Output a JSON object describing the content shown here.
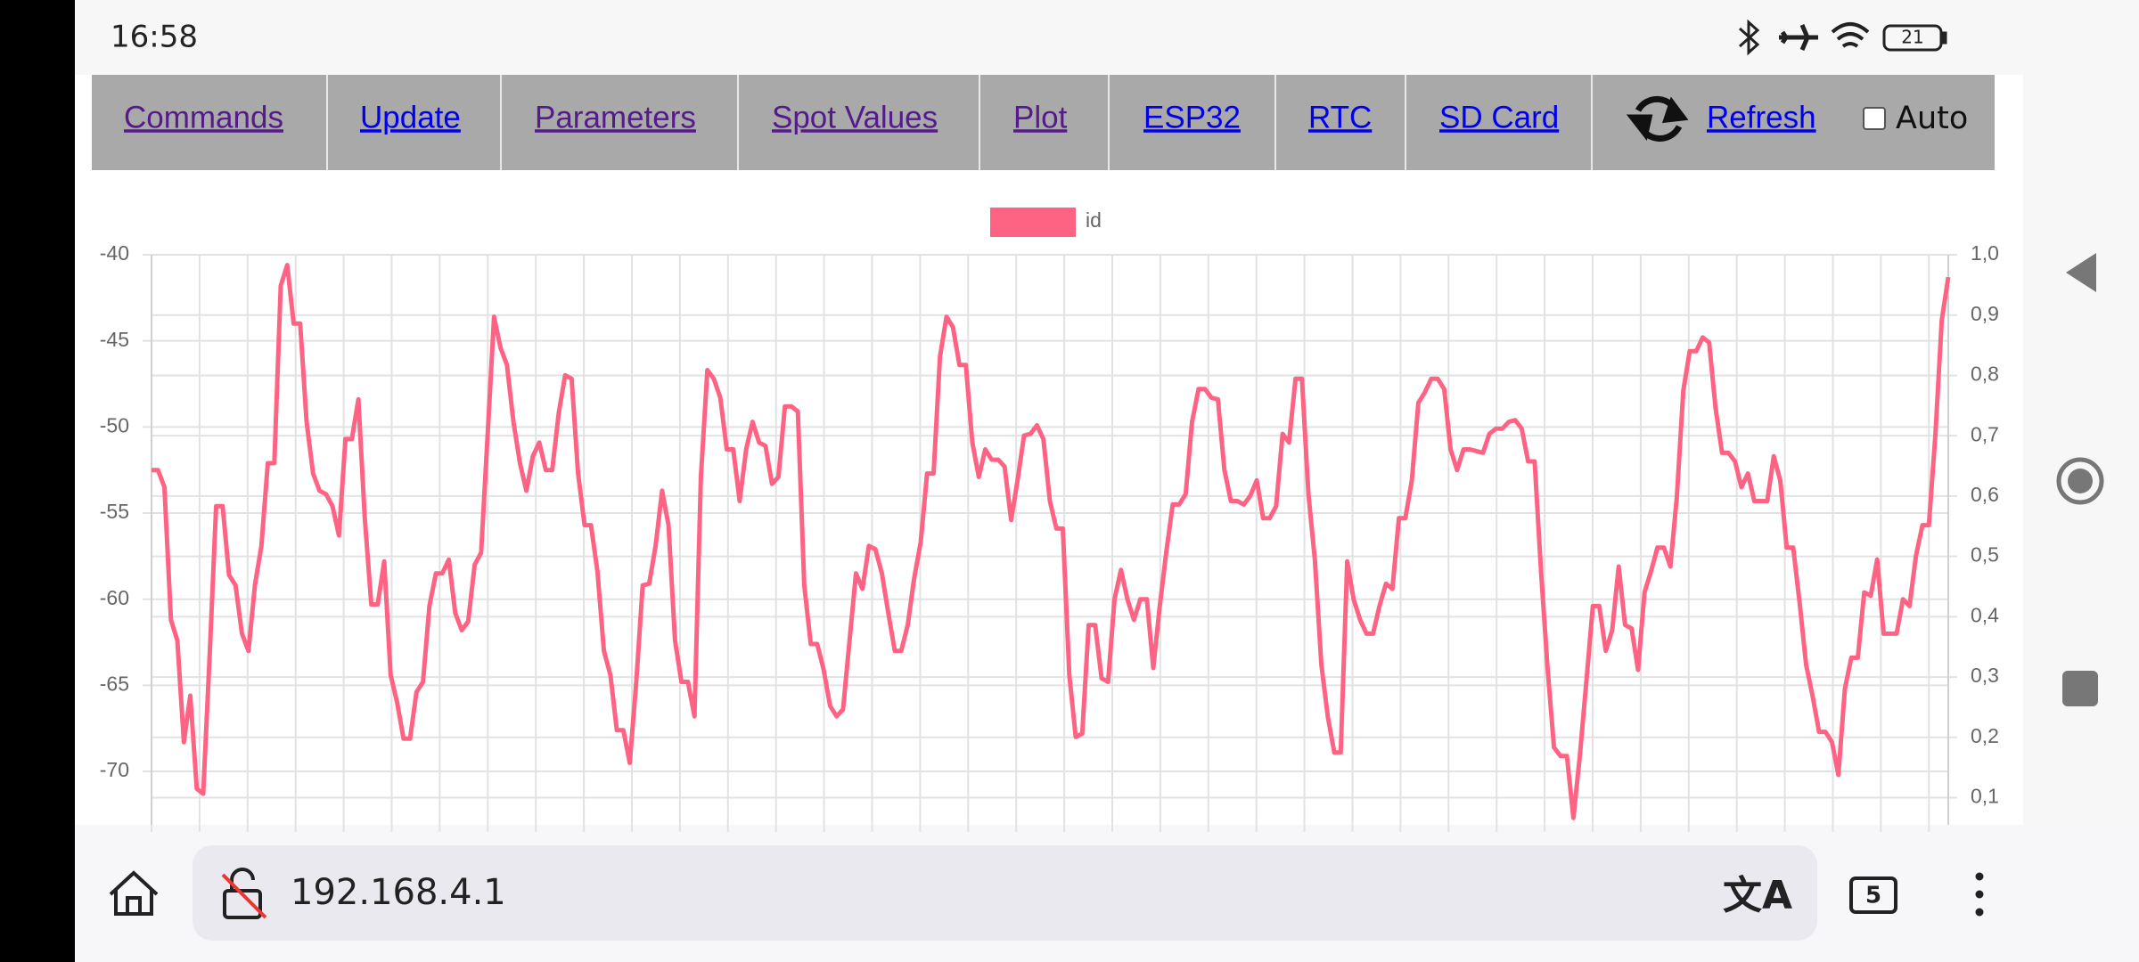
{
  "status_bar": {
    "time": "16:58",
    "battery": "21"
  },
  "nav": {
    "links": [
      "Commands",
      "Update",
      "Parameters",
      "Spot Values",
      "Plot",
      "ESP32",
      "RTC",
      "SD Card",
      "Refresh"
    ],
    "auto": "Auto"
  },
  "chart_data": {
    "type": "line",
    "series": [
      {
        "name": "id",
        "color": "#ff6384",
        "values": [
          -52.5,
          -52.5,
          -53.5,
          -61.2,
          -62.4,
          -68.3,
          -65.6,
          -71,
          -71.3,
          -63.2,
          -54.6,
          -54.6,
          -58.6,
          -59.2,
          -62,
          -63,
          -59.2,
          -56.9,
          -52.1,
          -52.1,
          -41.8,
          -40.6,
          -44,
          -44,
          -49.7,
          -52.7,
          -53.7,
          -53.9,
          -54.6,
          -56.3,
          -50.7,
          -50.7,
          -48.4,
          -55.3,
          -60.3,
          -60.3,
          -57.8,
          -64.4,
          -66,
          -68.1,
          -68.1,
          -65.4,
          -64.8,
          -60.4,
          -58.5,
          -58.5,
          -57.7,
          -60.8,
          -61.8,
          -61.3,
          -58,
          -57.3,
          -50.5,
          -43.6,
          -45.4,
          -46.4,
          -49.7,
          -52.1,
          -53.7,
          -51.7,
          -50.9,
          -52.5,
          -52.5,
          -49.2,
          -47,
          -47.2,
          -52.7,
          -55.7,
          -55.7,
          -58.4,
          -63,
          -64.4,
          -67.6,
          -67.6,
          -69.5,
          -64.8,
          -59.2,
          -59.1,
          -56.9,
          -53.7,
          -55.7,
          -62.4,
          -64.8,
          -64.8,
          -66.8,
          -52.9,
          -46.7,
          -47.2,
          -48.3,
          -51.3,
          -51.3,
          -54.3,
          -51.3,
          -49.7,
          -50.9,
          -51.1,
          -53.3,
          -52.9,
          -48.8,
          -48.8,
          -49.1,
          -59.2,
          -62.6,
          -62.6,
          -64.1,
          -66.2,
          -66.8,
          -66.4,
          -62.4,
          -58.5,
          -59.4,
          -56.9,
          -57.1,
          -58.5,
          -60.8,
          -63,
          -63,
          -61.5,
          -58.8,
          -56.7,
          -52.7,
          -52.7,
          -45.9,
          -43.6,
          -44.2,
          -46.4,
          -46.4,
          -50.9,
          -52.9,
          -51.3,
          -51.9,
          -51.9,
          -52.3,
          -55.4,
          -53.1,
          -50.5,
          -50.4,
          -49.9,
          -50.7,
          -54.3,
          -55.9,
          -55.9,
          -64.4,
          -68,
          -67.8,
          -61.5,
          -61.5,
          -64.6,
          -64.8,
          -60,
          -58.3,
          -60,
          -61.2,
          -60,
          -60,
          -64,
          -60.4,
          -57.3,
          -54.5,
          -54.5,
          -53.9,
          -49.7,
          -47.8,
          -47.8,
          -48.3,
          -48.4,
          -52.5,
          -54.3,
          -54.3,
          -54.5,
          -54,
          -53.1,
          -55.3,
          -55.3,
          -54.6,
          -50.4,
          -50.9,
          -47.2,
          -47.2,
          -53.9,
          -57.7,
          -63.8,
          -66.8,
          -68.9,
          -68.9,
          -57.8,
          -60,
          -61.2,
          -62,
          -62,
          -60.4,
          -59.1,
          -59.4,
          -55.3,
          -55.3,
          -53.1,
          -48.6,
          -48,
          -47.2,
          -47.2,
          -47.8,
          -51.3,
          -52.5,
          -51.3,
          -51.3,
          -51.4,
          -51.5,
          -50.4,
          -50.1,
          -50.1,
          -49.7,
          -49.6,
          -50.1,
          -52,
          -52,
          -58.4,
          -64,
          -68.6,
          -69.1,
          -69.1,
          -72.7,
          -69.1,
          -64.8,
          -60.4,
          -60.4,
          -63,
          -61.8,
          -58.1,
          -61.5,
          -61.7,
          -64.1,
          -59.6,
          -58.4,
          -57,
          -57,
          -58.1,
          -54.1,
          -47.9,
          -45.6,
          -45.6,
          -44.8,
          -45.1,
          -48.9,
          -51.5,
          -51.5,
          -52,
          -53.5,
          -52.7,
          -54.3,
          -54.3,
          -54.3,
          -51.7,
          -53.1,
          -57,
          -57,
          -60.2,
          -63.8,
          -65.6,
          -67.7,
          -67.7,
          -68.3,
          -70.2,
          -65.2,
          -63.4,
          -63.4,
          -59.6,
          -59.8,
          -57.7,
          -62,
          -62,
          -62,
          -60,
          -60.4,
          -57.5,
          -55.7,
          -55.7,
          -50.5,
          -43.8,
          -41.3
        ]
      }
    ],
    "ylim": [
      -73.1,
      -40
    ],
    "yticks": [
      -40,
      -45,
      -50,
      -55,
      -60,
      -65,
      -70
    ],
    "y2lim": [
      0.055,
      1.0
    ],
    "y2ticks": [
      {
        "value": 1.0,
        "label": "1,0"
      },
      {
        "value": 0.9,
        "label": "0,9"
      },
      {
        "value": 0.8,
        "label": "0,8"
      },
      {
        "value": 0.7,
        "label": "0,7"
      },
      {
        "value": 0.6,
        "label": "0,6"
      },
      {
        "value": 0.5,
        "label": "0,5"
      },
      {
        "value": 0.4,
        "label": "0,4"
      },
      {
        "value": 0.3,
        "label": "0,3"
      },
      {
        "value": 0.2,
        "label": "0,2"
      },
      {
        "value": 0.1,
        "label": "0,1"
      }
    ],
    "grid": true,
    "legend": "top"
  },
  "browser_bar": {
    "url": "192.168.4.1",
    "tab_count": "5"
  }
}
